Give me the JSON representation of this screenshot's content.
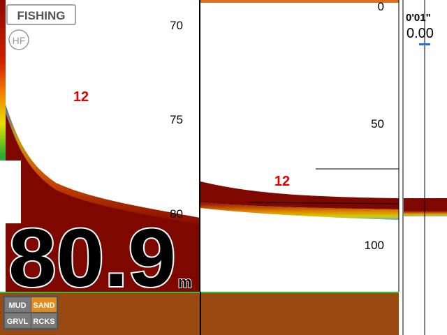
{
  "mode": "FISHING",
  "frequency": "HF",
  "zoom_scale": [
    70,
    75,
    80
  ],
  "zoom_target_label": 12,
  "history_scale": [
    0,
    50,
    100
  ],
  "history_target_label": 12,
  "flasher_time": "0'01\"",
  "flasher_value": "0.00",
  "depth": "80.9",
  "depth_unit": "m",
  "bottom_types": [
    "MUD",
    "SAND",
    "GRVL",
    "RCKS"
  ]
}
